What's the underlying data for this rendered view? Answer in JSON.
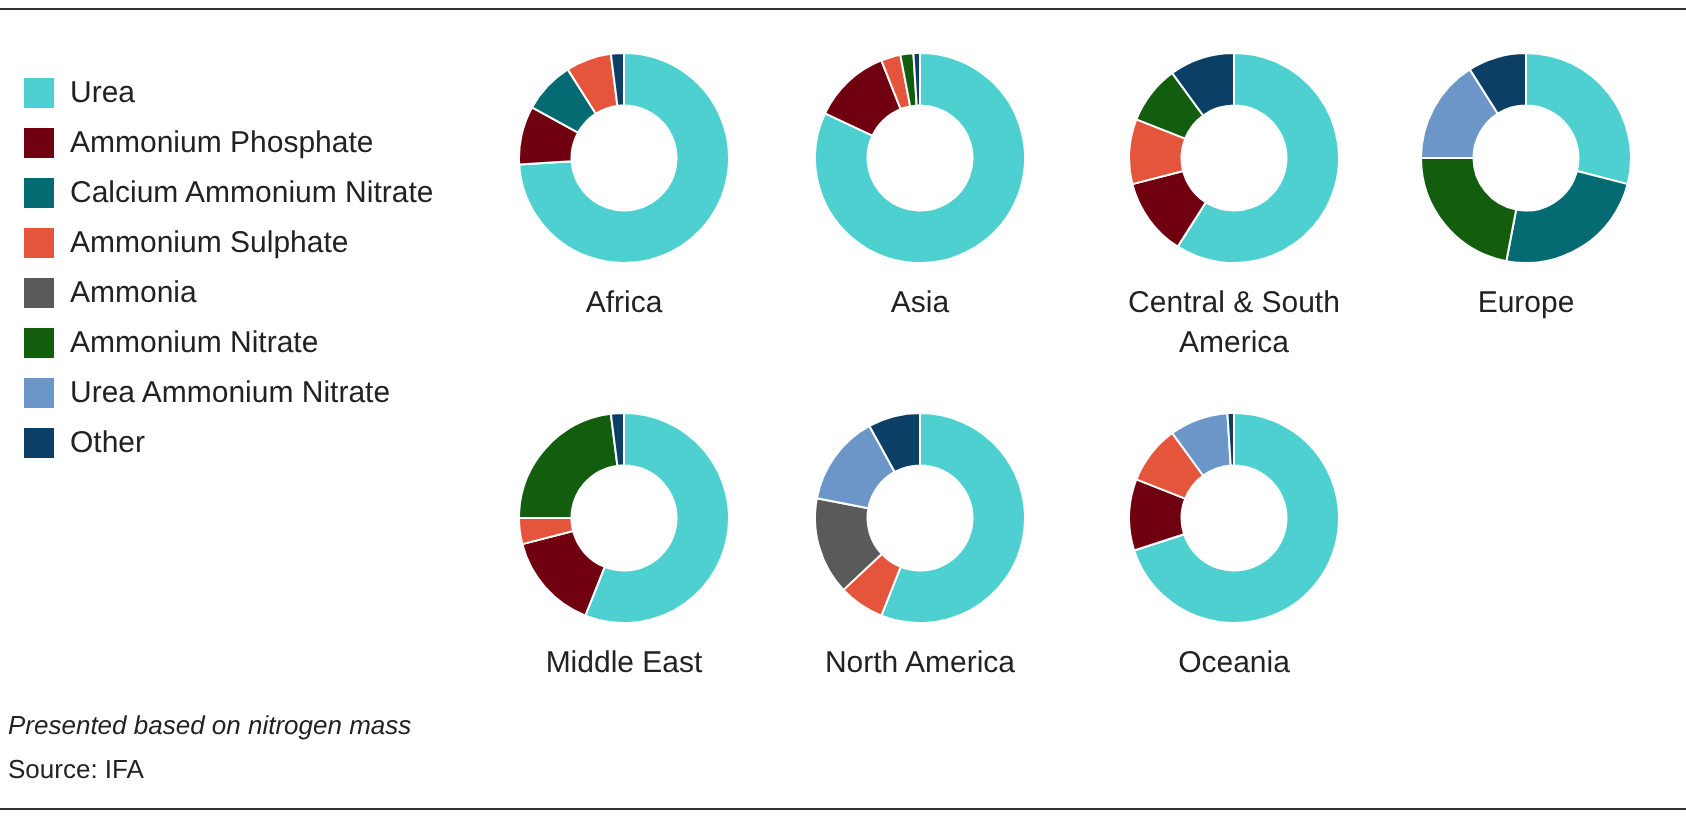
{
  "chart_data": [
    {
      "type": "donut",
      "title": "Africa",
      "categories": [
        "Urea",
        "Ammonium Phosphate",
        "Calcium Ammonium Nitrate",
        "Ammonium Sulphate",
        "Ammonia",
        "Ammonium Nitrate",
        "Urea Ammonium Nitrate",
        "Other"
      ],
      "values": [
        74,
        9,
        8,
        7,
        0,
        0,
        0,
        2
      ],
      "colors": [
        "#4dd0cf",
        "#700010",
        "#046b73",
        "#e4553b",
        "#5a5a5a",
        "#135e0e",
        "#6c96c8",
        "#0b3f66"
      ],
      "legend": "left",
      "annotations": [
        "Presented based on nitrogen mass",
        "Source: IFA"
      ]
    },
    {
      "type": "donut",
      "title": "Asia",
      "categories": [
        null,
        null,
        null,
        null,
        null,
        null,
        null,
        null
      ],
      "values": [
        82,
        12,
        0,
        3,
        0,
        2,
        0,
        1
      ],
      "colors": [
        "#4dd0cf",
        "#700010",
        "#046b73",
        "#e4553b",
        "#5a5a5a",
        "#135e0e",
        "#6c96c8",
        "#0b3f66"
      ]
    },
    {
      "type": "donut",
      "title": "Central & South America",
      "categories": [
        null,
        null,
        null,
        null,
        null,
        null,
        null,
        null
      ],
      "values": [
        59,
        12,
        0,
        10,
        0,
        9,
        0,
        10
      ],
      "colors": [
        "#4dd0cf",
        "#700010",
        "#046b73",
        "#e4553b",
        "#5a5a5a",
        "#135e0e",
        "#6c96c8",
        "#0b3f66"
      ]
    },
    {
      "type": "donut",
      "title": "Europe",
      "categories": [
        null,
        null,
        null,
        null,
        null,
        null,
        null,
        null
      ],
      "values": [
        29,
        0,
        24,
        0,
        0,
        22,
        16,
        9
      ],
      "colors": [
        "#4dd0cf",
        "#700010",
        "#046b73",
        "#e4553b",
        "#5a5a5a",
        "#135e0e",
        "#6c96c8",
        "#0b3f66"
      ]
    },
    {
      "type": "donut",
      "title": "Middle East",
      "categories": [
        null,
        null,
        null,
        null,
        null,
        null,
        null,
        null
      ],
      "values": [
        56,
        15,
        0,
        4,
        0,
        23,
        0,
        2
      ],
      "colors": [
        "#4dd0cf",
        "#700010",
        "#046b73",
        "#e4553b",
        "#5a5a5a",
        "#135e0e",
        "#6c96c8",
        "#0b3f66"
      ]
    },
    {
      "type": "donut",
      "title": "North America",
      "categories": [
        null,
        null,
        null,
        null,
        null,
        null,
        null,
        null
      ],
      "values": [
        56,
        0,
        0,
        7,
        15,
        0,
        14,
        8
      ],
      "colors": [
        "#4dd0cf",
        "#700010",
        "#046b73",
        "#e4553b",
        "#5a5a5a",
        "#135e0e",
        "#6c96c8",
        "#0b3f66"
      ]
    },
    {
      "type": "donut",
      "title": "Oceania",
      "categories": [
        null,
        null,
        null,
        null,
        null,
        null,
        null,
        null
      ],
      "values": [
        70,
        11,
        0,
        9,
        0,
        0,
        9,
        1
      ],
      "colors": [
        "#4dd0cf",
        "#700010",
        "#046b73",
        "#e4553b",
        "#5a5a5a",
        "#135e0e",
        "#6c96c8",
        "#0b3f66"
      ]
    }
  ]
}
